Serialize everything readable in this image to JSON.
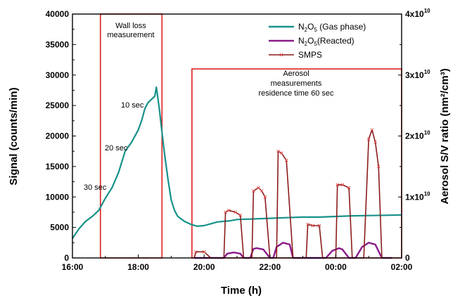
{
  "chart_data": {
    "type": "line",
    "xlabel": "Time (h)",
    "ylabel": "Signal (counts/min)",
    "y2label": "Aerosol S/V ratio (nm²/cm³)",
    "x_ticks": [
      "16:00",
      "18:00",
      "20:00",
      "22:00",
      "00:00",
      "02:00"
    ],
    "x_tick_hours": [
      16,
      18,
      20,
      22,
      24,
      26
    ],
    "xlim": [
      16,
      26
    ],
    "ylim": [
      0,
      40000
    ],
    "y_ticks": [
      "0",
      "5000",
      "10000",
      "15000",
      "20000",
      "25000",
      "30000",
      "35000",
      "40000"
    ],
    "y2lim": [
      0,
      40000000000.0
    ],
    "y2_ticks": [
      {
        "base": "0",
        "exp": ""
      },
      {
        "base": "1x10",
        "exp": "10"
      },
      {
        "base": "2x10",
        "exp": "10"
      },
      {
        "base": "3x10",
        "exp": "10"
      },
      {
        "base": "4x10",
        "exp": "10"
      }
    ],
    "legend": {
      "position": "top-right",
      "entries": [
        {
          "main": "N",
          "sub1": "2",
          "mid": "O",
          "sub2": "5",
          "rest": " (Gas phase)",
          "color": "#17918a"
        },
        {
          "main": "N",
          "sub1": "2",
          "mid": "O",
          "sub2": "5",
          "rest": "(Reacted)",
          "color": "#8a1a8a"
        },
        {
          "main": "SMPS",
          "sub1": "",
          "mid": "",
          "sub2": "",
          "rest": "",
          "color": "#8b1c1c"
        }
      ]
    },
    "annotations": [
      {
        "lines": [
          "Wall loss",
          "measurement"
        ]
      },
      {
        "lines": [
          "Aerosol",
          "measurements",
          "residence time 60 sec"
        ]
      },
      {
        "lines": [
          "10 sec"
        ]
      },
      {
        "lines": [
          "20 sec"
        ]
      },
      {
        "lines": [
          "30 sec"
        ]
      }
    ],
    "regions": [
      {
        "x0": 16.85,
        "x1": 18.72,
        "y0": 0,
        "y1": 40000,
        "color": "#e02020"
      },
      {
        "x0": 19.63,
        "x1": 26.0,
        "y0": 0,
        "y1": 31000,
        "color": "#e02020"
      }
    ],
    "series": [
      {
        "name": "N2O5 (Gas phase)",
        "axis": "left",
        "color": "#17918a",
        "x": [
          16.0,
          16.2,
          16.4,
          16.6,
          16.8,
          17.0,
          17.2,
          17.4,
          17.6,
          17.8,
          18.0,
          18.1,
          18.2,
          18.3,
          18.4,
          18.5,
          18.55,
          18.6,
          18.65,
          18.7,
          18.8,
          18.9,
          19.0,
          19.1,
          19.2,
          19.4,
          19.6,
          19.8,
          20.0,
          20.2,
          20.4,
          20.6,
          20.8,
          21.0,
          21.5,
          22.0,
          22.5,
          23.0,
          23.5,
          24.0,
          24.5,
          25.0,
          25.5,
          26.0
        ],
        "y": [
          3200,
          4800,
          6000,
          6800,
          7800,
          9800,
          11500,
          14000,
          17500,
          19000,
          21000,
          22500,
          24500,
          25500,
          26000,
          26500,
          28000,
          26000,
          24000,
          21500,
          17000,
          13000,
          9500,
          7800,
          6800,
          6000,
          5500,
          5200,
          5300,
          5600,
          5900,
          6000,
          6100,
          6300,
          6400,
          6500,
          6600,
          6700,
          6700,
          6800,
          6900,
          6950,
          7000,
          7050
        ]
      },
      {
        "name": "N2O5(Reacted)",
        "axis": "left",
        "color": "#8a1a8a",
        "x": [
          19.7,
          20.6,
          20.7,
          20.9,
          21.1,
          21.2,
          21.4,
          21.5,
          21.6,
          21.8,
          22.0,
          22.1,
          22.2,
          22.4,
          22.6,
          22.7,
          22.9,
          23.1,
          23.2,
          23.4,
          23.6,
          23.7,
          23.9,
          24.1,
          24.2,
          24.4,
          24.6,
          24.8,
          25.0,
          25.2,
          25.4,
          25.6,
          25.7
        ],
        "y": [
          0,
          0,
          700,
          900,
          700,
          0,
          0,
          1500,
          1600,
          1400,
          0,
          0,
          1800,
          2500,
          2200,
          0,
          0,
          0,
          0,
          0,
          0,
          0,
          1200,
          1600,
          1400,
          0,
          0,
          1800,
          2500,
          2200,
          0,
          0,
          0
        ]
      },
      {
        "name": "SMPS",
        "axis": "right",
        "color": "#8b1c1c",
        "x": [
          19.7,
          19.75,
          20.0,
          20.2,
          20.25,
          20.3,
          20.4,
          20.5,
          20.6,
          20.65,
          20.75,
          20.95,
          21.1,
          21.2,
          21.3,
          21.4,
          21.45,
          21.5,
          21.65,
          21.75,
          21.85,
          22.0,
          22.1,
          22.2,
          22.25,
          22.35,
          22.5,
          22.7,
          22.75,
          22.8,
          22.9,
          23.0,
          23.1,
          23.15,
          23.3,
          23.5,
          23.6,
          23.7,
          23.8,
          23.9,
          24.0,
          24.05,
          24.2,
          24.4,
          24.5,
          24.6,
          24.7,
          24.8,
          24.85,
          25.0,
          25.1,
          25.2,
          25.3,
          25.4,
          25.5,
          25.6,
          25.7
        ],
        "y": [
          0,
          1000000000.0,
          1000000000.0,
          0,
          0,
          0,
          0,
          0,
          0,
          7500000000.0,
          7800000000.0,
          7500000000.0,
          7000000000.0,
          0,
          0,
          0,
          0,
          11000000000.0,
          11500000000.0,
          11000000000.0,
          10000000000.0,
          0,
          0,
          0,
          17500000000.0,
          17200000000.0,
          16000000000.0,
          0,
          0,
          0,
          0,
          0,
          0,
          5500000000.0,
          5300000000.0,
          5300000000.0,
          0,
          0,
          0,
          0,
          0,
          12000000000.0,
          12000000000.0,
          11500000000.0,
          0,
          0,
          0,
          0,
          0,
          19500000000.0,
          21000000000.0,
          19000000000.0,
          15000000000.0,
          0,
          0,
          0,
          0
        ]
      }
    ]
  }
}
